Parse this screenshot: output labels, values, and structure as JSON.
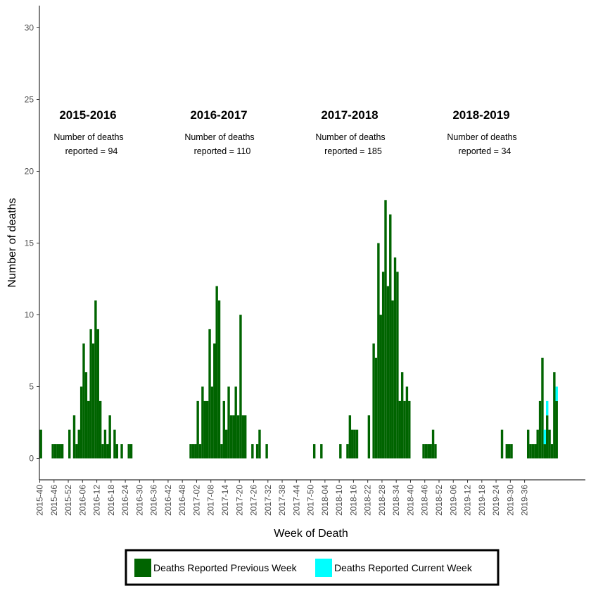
{
  "chart_data": {
    "type": "bar",
    "title": "",
    "xlabel": "Week of Death",
    "ylabel": "Number of deaths",
    "ylim": [
      0,
      31
    ],
    "yticks": [
      0,
      5,
      10,
      15,
      20,
      25,
      30
    ],
    "x_start": "2015-40",
    "x_tick_labels": [
      "2015-40",
      "2015-46",
      "2015-52",
      "2016-06",
      "2016-12",
      "2016-18",
      "2016-24",
      "2016-30",
      "2016-36",
      "2016-42",
      "2016-48",
      "2017-02",
      "2017-08",
      "2017-14",
      "2017-20",
      "2017-26",
      "2017-32",
      "2017-38",
      "2017-44",
      "2017-50",
      "2018-04",
      "2018-10",
      "2018-16",
      "2018-22",
      "2018-28",
      "2018-34",
      "2018-40",
      "2018-46",
      "2018-52",
      "2019-06",
      "2019-12",
      "2019-18",
      "2019-24",
      "2019-30",
      "2019-36"
    ],
    "colors": {
      "previous": "#006400",
      "current": "#00ffff"
    },
    "series": [
      {
        "name": "Deaths Reported Previous Week",
        "values": [
          2,
          0,
          0,
          0,
          0,
          1,
          1,
          1,
          1,
          1,
          0,
          0,
          2,
          0,
          3,
          1,
          2,
          5,
          8,
          6,
          4,
          9,
          8,
          11,
          9,
          4,
          1,
          2,
          1,
          3,
          0,
          2,
          1,
          0,
          1,
          0,
          0,
          1,
          1,
          0,
          0,
          0,
          0,
          0,
          0,
          0,
          0,
          0,
          0,
          0,
          0,
          0,
          0,
          0,
          0,
          0,
          0,
          0,
          0,
          0,
          0,
          0,
          0,
          1,
          1,
          1,
          4,
          1,
          5,
          4,
          4,
          9,
          5,
          8,
          12,
          11,
          1,
          4,
          2,
          5,
          3,
          3,
          5,
          3,
          10,
          3,
          3,
          0,
          0,
          1,
          0,
          1,
          2,
          0,
          0,
          1,
          0,
          0,
          0,
          0,
          0,
          0,
          0,
          0,
          0,
          0,
          0,
          0,
          0,
          0,
          0,
          0,
          0,
          0,
          0,
          1,
          0,
          0,
          1,
          0,
          0,
          0,
          0,
          0,
          0,
          0,
          1,
          0,
          0,
          1,
          3,
          2,
          2,
          2,
          0,
          0,
          0,
          0,
          3,
          0,
          8,
          7,
          15,
          10,
          13,
          18,
          12,
          17,
          11,
          14,
          13,
          4,
          6,
          4,
          5,
          4,
          0,
          0,
          0,
          0,
          0,
          1,
          1,
          1,
          1,
          2,
          1,
          0,
          0,
          0,
          0,
          0,
          0,
          0,
          0,
          0,
          0,
          0,
          0,
          0,
          0,
          0,
          0,
          0,
          0,
          0,
          0,
          0,
          0,
          0,
          0,
          0,
          0,
          0,
          2,
          0,
          1,
          1,
          1,
          0,
          0,
          0,
          0,
          0,
          0,
          2,
          1,
          1,
          1,
          2,
          4,
          7,
          1,
          3,
          2,
          1,
          6,
          4
        ]
      },
      {
        "name": "Deaths Reported Current Week",
        "values": [
          0,
          0,
          0,
          0,
          0,
          0,
          0,
          0,
          0,
          0,
          0,
          0,
          0,
          0,
          0,
          0,
          0,
          0,
          0,
          0,
          0,
          0,
          0,
          0,
          0,
          0,
          0,
          0,
          0,
          0,
          0,
          0,
          0,
          0,
          0,
          0,
          0,
          0,
          0,
          0,
          0,
          0,
          0,
          0,
          0,
          0,
          0,
          0,
          0,
          0,
          0,
          0,
          0,
          0,
          0,
          0,
          0,
          0,
          0,
          0,
          0,
          0,
          0,
          0,
          0,
          0,
          0,
          0,
          0,
          0,
          0,
          0,
          0,
          0,
          0,
          0,
          0,
          0,
          0,
          0,
          0,
          0,
          0,
          0,
          0,
          0,
          0,
          0,
          0,
          0,
          0,
          0,
          0,
          0,
          0,
          0,
          0,
          0,
          0,
          0,
          0,
          0,
          0,
          0,
          0,
          0,
          0,
          0,
          0,
          0,
          0,
          0,
          0,
          0,
          0,
          0,
          0,
          0,
          0,
          0,
          0,
          0,
          0,
          0,
          0,
          0,
          0,
          0,
          0,
          0,
          0,
          0,
          0,
          0,
          0,
          0,
          0,
          0,
          0,
          0,
          0,
          0,
          0,
          0,
          0,
          0,
          0,
          0,
          0,
          0,
          0,
          0,
          0,
          0,
          0,
          0,
          0,
          0,
          0,
          0,
          0,
          0,
          0,
          0,
          0,
          0,
          0,
          0,
          0,
          0,
          0,
          0,
          0,
          0,
          0,
          0,
          0,
          0,
          0,
          0,
          0,
          0,
          0,
          0,
          0,
          0,
          0,
          0,
          0,
          0,
          0,
          0,
          0,
          0,
          0,
          0,
          0,
          0,
          0,
          0,
          0,
          0,
          0,
          0,
          0,
          0,
          0,
          0,
          0,
          0,
          0,
          0,
          1,
          1,
          0,
          0,
          0,
          1,
          2,
          2
        ]
      }
    ],
    "annotations": [
      {
        "season": "2015-2016",
        "line1": "Number of deaths",
        "line2": "reported = 94"
      },
      {
        "season": "2016-2017",
        "line1": "Number of deaths",
        "line2": "reported = 110"
      },
      {
        "season": "2017-2018",
        "line1": "Number of deaths",
        "line2": "reported = 185"
      },
      {
        "season": "2018-2019",
        "line1": "Number of deaths",
        "line2": "reported = 34"
      }
    ],
    "legend": {
      "placement": "bottom",
      "items": [
        {
          "label": "Deaths Reported Previous Week",
          "color": "#006400"
        },
        {
          "label": "Deaths Reported Current Week",
          "color": "#00ffff"
        }
      ]
    },
    "grid": false
  }
}
